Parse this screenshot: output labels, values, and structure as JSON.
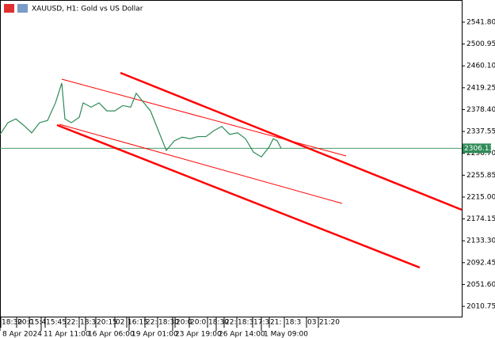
{
  "chart_data": {
    "type": "line",
    "title": "XAUUSD, H1:  Gold vs US Dollar",
    "x": [
      0,
      10,
      20,
      30,
      40,
      50,
      60,
      70,
      78,
      82,
      90,
      100,
      105,
      115,
      125,
      135,
      145,
      155,
      165,
      172,
      180,
      190,
      200,
      210,
      220,
      230,
      240,
      250,
      260,
      270,
      280,
      290,
      300,
      310,
      320,
      330,
      340,
      345,
      350,
      355
    ],
    "series": [
      {
        "name": "XAUUSD",
        "color": "#2e8b57",
        "values": [
          2331.8,
          2354,
          2361,
          2349,
          2335,
          2354,
          2358,
          2391,
          2428,
          2361,
          2354,
          2364,
          2391,
          2383,
          2391,
          2376,
          2376,
          2386,
          2383,
          2409,
          2394,
          2376,
          2339,
          2302,
          2320,
          2327,
          2324,
          2328,
          2328,
          2339,
          2347,
          2332,
          2335,
          2324,
          2299,
          2290,
          2309,
          2324,
          2320,
          2306
        ]
      }
    ],
    "trendlines": [
      {
        "color": "#ff0000",
        "width": 1,
        "x": [
          78,
          437
        ],
        "values": [
          2435.3,
          2291.9
        ]
      },
      {
        "color": "#ff0000",
        "width": 1,
        "x": [
          75,
          432
        ],
        "values": [
          2351.0,
          2203.1
        ]
      },
      {
        "color": "#ff0000",
        "width": 2.5,
        "x": [
          152,
          583
        ],
        "values": [
          2447.1,
          2191.3
        ]
      },
      {
        "color": "#ff0000",
        "width": 2.5,
        "x": [
          72,
          530
        ],
        "values": [
          2349.5,
          2083.3
        ]
      }
    ],
    "current_price": 2306.13,
    "xlim": [
      0,
      583
    ],
    "ylim": [
      1991.6,
      2583.2
    ],
    "yticks": [
      {
        "value": 2541.8,
        "label": "2541.80"
      },
      2500.95,
      {
        "value": 2460.1,
        "label": "2460.10"
      },
      2419.25,
      {
        "value": 2378.4,
        "label": "2378.40"
      },
      2337.55,
      {
        "value": 2296.7,
        "label": "2296.70"
      },
      2255.85,
      {
        "value": 2215,
        "label": "2215.00"
      },
      2174.15,
      {
        "value": 2133.3,
        "label": "2133.30"
      },
      2092.45,
      {
        "value": 2051.6,
        "label": "2051.60"
      },
      2010.75
    ],
    "xticks": [
      {
        "value": 0,
        "label": "8 Apr 2024"
      },
      {
        "value": 52,
        "label": "11 Apr 11:00"
      },
      {
        "value": 108,
        "label": "16 Apr 06:00"
      },
      {
        "value": 163,
        "label": "19 Apr 01:00"
      },
      {
        "value": 218,
        "label": "23 Apr 19:00"
      },
      {
        "value": 273,
        "label": "26 Apr 14:00"
      },
      {
        "value": 330,
        "label": "1 May 09:00"
      }
    ],
    "navigator_labels": [
      "18:30",
      "20:0",
      "15:4",
      "15:45",
      "22:",
      "18:3",
      "20:15",
      "02",
      "16:15",
      "22:",
      "18:30",
      "20:0",
      "20:0",
      "18:30",
      "22:",
      "18:3",
      "17:3",
      "21:",
      "18:3",
      "03",
      "21:20"
    ]
  }
}
